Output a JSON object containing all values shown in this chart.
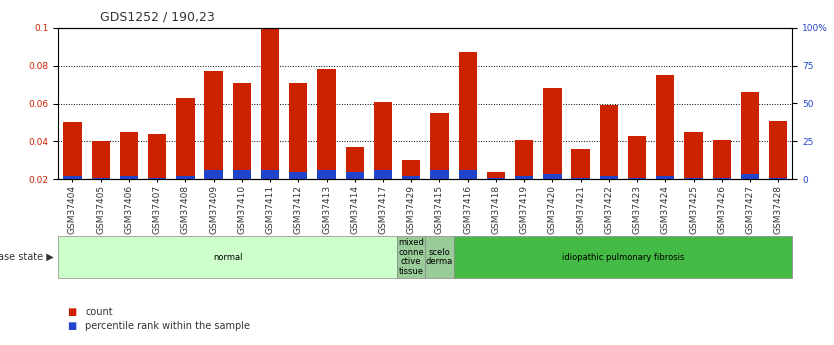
{
  "title": "GDS1252 / 190,23",
  "samples": [
    "GSM37404",
    "GSM37405",
    "GSM37406",
    "GSM37407",
    "GSM37408",
    "GSM37409",
    "GSM37410",
    "GSM37411",
    "GSM37412",
    "GSM37413",
    "GSM37414",
    "GSM37417",
    "GSM37429",
    "GSM37415",
    "GSM37416",
    "GSM37418",
    "GSM37419",
    "GSM37420",
    "GSM37421",
    "GSM37422",
    "GSM37423",
    "GSM37424",
    "GSM37425",
    "GSM37426",
    "GSM37427",
    "GSM37428"
  ],
  "count_values": [
    0.05,
    0.04,
    0.045,
    0.044,
    0.063,
    0.077,
    0.071,
    0.099,
    0.071,
    0.078,
    0.037,
    0.061,
    0.03,
    0.055,
    0.087,
    0.024,
    0.041,
    0.068,
    0.036,
    0.059,
    0.043,
    0.075,
    0.045,
    0.041,
    0.066,
    0.051
  ],
  "percentile_values": [
    0.022,
    0.021,
    0.022,
    0.021,
    0.022,
    0.025,
    0.025,
    0.025,
    0.024,
    0.025,
    0.024,
    0.025,
    0.022,
    0.025,
    0.025,
    0.021,
    0.022,
    0.023,
    0.021,
    0.022,
    0.021,
    0.022,
    0.021,
    0.021,
    0.023,
    0.021
  ],
  "bar_bottom": 0.02,
  "ylim_left": [
    0.02,
    0.1
  ],
  "ylim_right": [
    0,
    100
  ],
  "yticks_left": [
    0.02,
    0.04,
    0.06,
    0.08,
    0.1
  ],
  "yticks_right": [
    0,
    25,
    50,
    75,
    100
  ],
  "ytick_labels_left": [
    "0.02",
    "0.04",
    "0.06",
    "0.08",
    "0.1"
  ],
  "ytick_labels_right": [
    "0",
    "25",
    "50",
    "75",
    "100%"
  ],
  "count_color": "#cc2200",
  "percentile_color": "#2244cc",
  "bg_color": "#ffffff",
  "disease_states": [
    {
      "label": "normal",
      "start": 0,
      "end": 12,
      "color": "#ccffcc"
    },
    {
      "label": "mixed\nconne\nctive\ntissue",
      "start": 12,
      "end": 13,
      "color": "#99cc99"
    },
    {
      "label": "scelo\nderma",
      "start": 13,
      "end": 14,
      "color": "#99cc99"
    },
    {
      "label": "idiopathic pulmonary fibrosis",
      "start": 14,
      "end": 26,
      "color": "#44bb44"
    }
  ],
  "disease_state_label": "disease state",
  "legend_count_label": "count",
  "legend_percentile_label": "percentile rank within the sample",
  "title_fontsize": 9,
  "tick_fontsize": 6.5,
  "bar_width": 0.65
}
